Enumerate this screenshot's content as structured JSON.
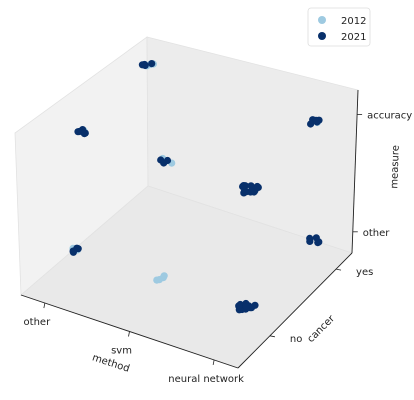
{
  "chart_data": {
    "type": "scatter",
    "projection": "3d",
    "xlabel": "method",
    "ylabel": "cancer",
    "zlabel": "measure",
    "x_categories": [
      "other",
      "svm",
      "neural network"
    ],
    "y_categories": [
      "no",
      "yes"
    ],
    "z_categories": [
      "other",
      "accuracy"
    ],
    "legend": {
      "placement": "top-right",
      "entries": [
        "2012",
        "2021"
      ]
    },
    "grid": false,
    "colors": {
      "2012": "#9ecae1",
      "2021": "#08306b",
      "pane": "#f2f2f2"
    },
    "series": [
      {
        "name": "2012",
        "points": [
          {
            "x": "other",
            "y": "no",
            "z": "other",
            "n": 3
          },
          {
            "x": "svm",
            "y": "no",
            "z": "other",
            "n": 4
          },
          {
            "x": "other",
            "y": "no",
            "z": "accuracy",
            "n": 3
          },
          {
            "x": "svm",
            "y": "no",
            "z": "accuracy",
            "n": 3
          },
          {
            "x": "other",
            "y": "yes",
            "z": "accuracy",
            "n": 3
          },
          {
            "x": "neural network",
            "y": "yes",
            "z": "accuracy",
            "n": 1
          }
        ]
      },
      {
        "name": "2021",
        "points": [
          {
            "x": "other",
            "y": "no",
            "z": "other",
            "n": 4
          },
          {
            "x": "neural network",
            "y": "no",
            "z": "other",
            "n": 14
          },
          {
            "x": "neural network",
            "y": "yes",
            "z": "other",
            "n": 5
          },
          {
            "x": "other",
            "y": "no",
            "z": "accuracy",
            "n": 5
          },
          {
            "x": "svm",
            "y": "no",
            "z": "accuracy",
            "n": 3
          },
          {
            "x": "neural network",
            "y": "no",
            "z": "accuracy",
            "n": 14
          },
          {
            "x": "other",
            "y": "yes",
            "z": "accuracy",
            "n": 4
          },
          {
            "x": "neural network",
            "y": "yes",
            "z": "accuracy",
            "n": 5
          }
        ]
      }
    ]
  }
}
